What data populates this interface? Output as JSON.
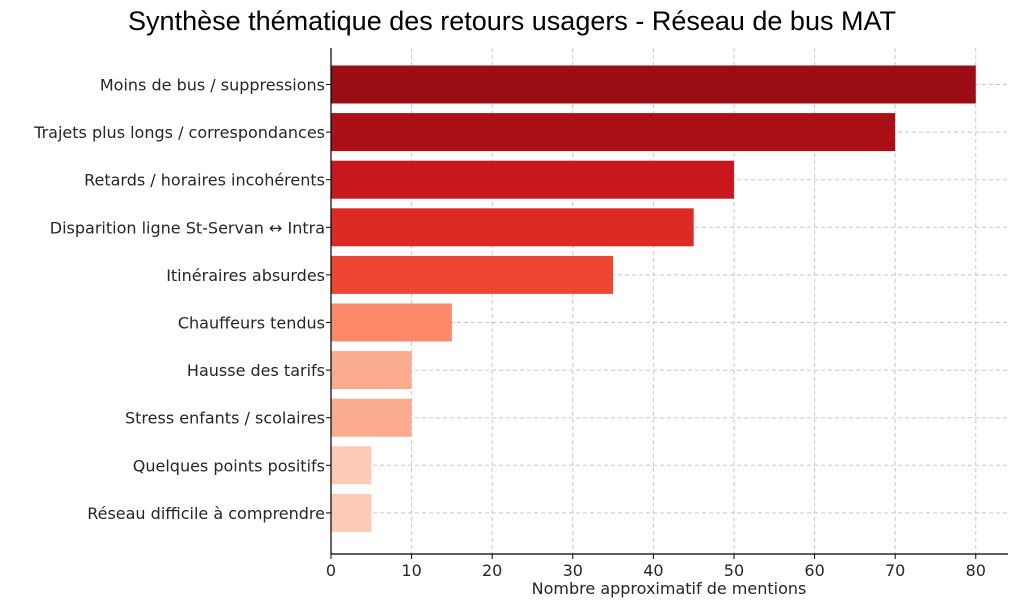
{
  "chart_data": {
    "type": "bar",
    "orientation": "horizontal",
    "title": "Synthèse thématique des retours usagers - Réseau de bus MAT",
    "xlabel": "Nombre approximatif de mentions",
    "ylabel": "",
    "xlim": [
      0,
      84
    ],
    "xticks": [
      0,
      10,
      20,
      30,
      40,
      50,
      60,
      70,
      80
    ],
    "grid": true,
    "categories": [
      "Moins de bus / suppressions",
      "Trajets plus longs / correspondances",
      "Retards / horaires incohérents",
      "Disparition ligne St-Servan ↔ Intra",
      "Itinéraires absurdes",
      "Chauffeurs tendus",
      "Hausse des tarifs",
      "Stress enfants / scolaires",
      "Quelques points positifs",
      "Réseau difficile à comprendre"
    ],
    "values": [
      80,
      70,
      50,
      45,
      35,
      15,
      10,
      10,
      5,
      5
    ],
    "colors": [
      "#9b0d14",
      "#ab1016",
      "#c9181d",
      "#dc2a25",
      "#ef4633",
      "#fc8a6a",
      "#fcac8e",
      "#fcac8e",
      "#fdcab5",
      "#fdcab5"
    ]
  }
}
